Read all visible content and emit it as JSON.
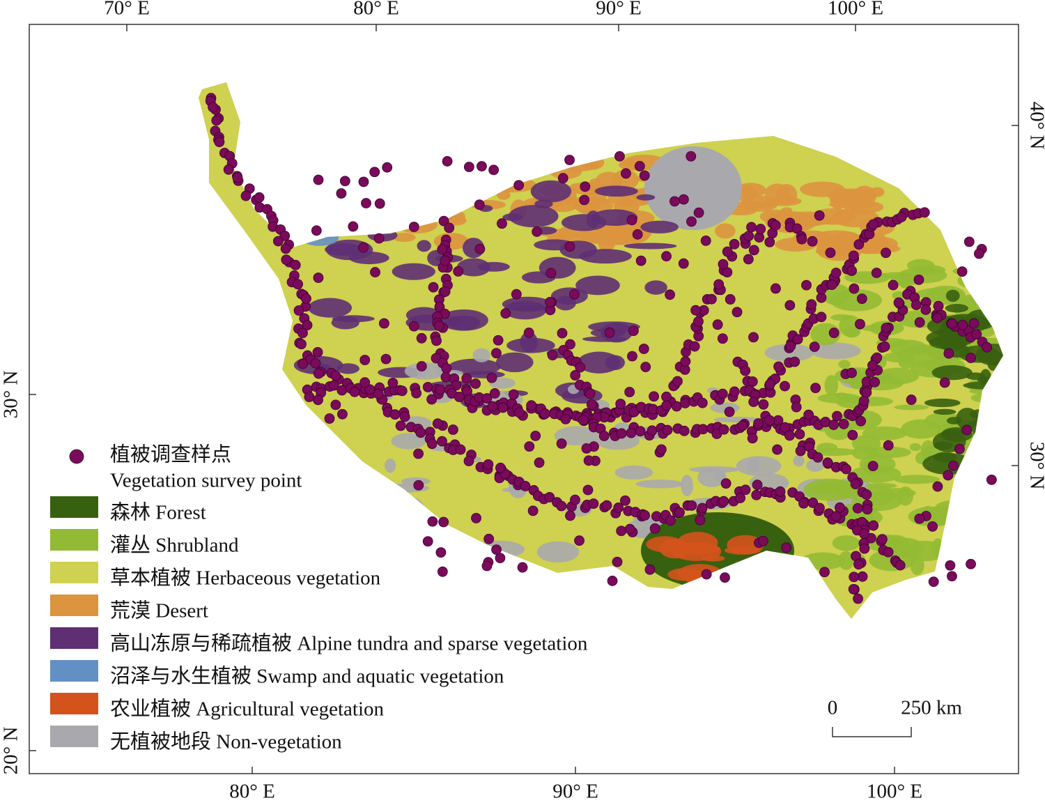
{
  "map": {
    "top_axis": [
      "70° E",
      "80° E",
      "90° E",
      "100° E"
    ],
    "bottom_axis": [
      "80° E",
      "90° E",
      "100° E"
    ],
    "left_axis": [
      "30° N",
      "20° N"
    ],
    "right_axis": [
      "40° N",
      "30° N"
    ],
    "legend": {
      "point": {
        "zh": "植被调查样点",
        "en": "Vegetation survey point",
        "color": "#7a0a5a"
      },
      "classes": [
        {
          "label": "森林 Forest",
          "color": "#38610f"
        },
        {
          "label": "灌丛 Shrubland",
          "color": "#93ba34"
        },
        {
          "label": "草本植被 Herbaceous vegetation",
          "color": "#cfd150"
        },
        {
          "label": "荒漠 Desert",
          "color": "#dc943f"
        },
        {
          "label": "高山冻原与稀疏植被 Alpine tundra and sparse vegetation",
          "color": "#5e2f73"
        },
        {
          "label": "沼泽与水生植被 Swamp and aquatic vegetation",
          "color": "#6390c4"
        },
        {
          "label": "农业植被 Agricultural vegetation",
          "color": "#d4531c"
        },
        {
          "label": "无植被地段 Non-vegetation",
          "color": "#a9a8ad"
        }
      ]
    },
    "scale_bar": {
      "start": "0",
      "end": "250 km"
    }
  }
}
